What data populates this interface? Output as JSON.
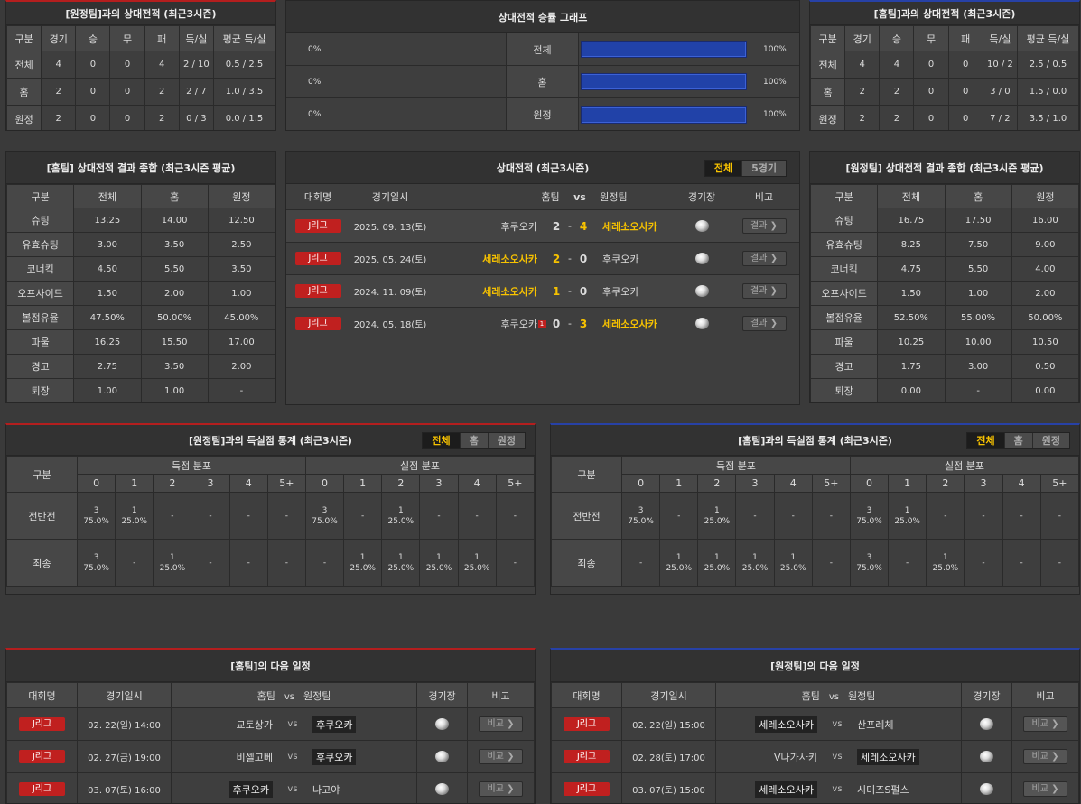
{
  "h2h_away": {
    "title": "[원정팀]과의 상대전적 (최근3시즌)",
    "headers": [
      "구분",
      "경기",
      "승",
      "무",
      "패",
      "득/실",
      "평균 득/실"
    ],
    "rows": [
      [
        "전체",
        "4",
        "0",
        "0",
        "4",
        "2 / 10",
        "0.5 / 2.5"
      ],
      [
        "홈",
        "2",
        "0",
        "0",
        "2",
        "2 / 7",
        "1.0 / 3.5"
      ],
      [
        "원정",
        "2",
        "0",
        "0",
        "2",
        "0 / 3",
        "0.0 / 1.5"
      ]
    ]
  },
  "win_graph": {
    "title": "상대전적 승률 그래프",
    "rows": [
      {
        "label": "전체",
        "left": "0%",
        "right": "100%",
        "fill": 100
      },
      {
        "label": "홈",
        "left": "0%",
        "right": "100%",
        "fill": 100
      },
      {
        "label": "원정",
        "left": "0%",
        "right": "100%",
        "fill": 100
      }
    ]
  },
  "h2h_home": {
    "title": "[홈팀]과의 상대전적 (최근3시즌)",
    "headers": [
      "구분",
      "경기",
      "승",
      "무",
      "패",
      "득/실",
      "평균 득/실"
    ],
    "rows": [
      [
        "전체",
        "4",
        "4",
        "0",
        "0",
        "10 / 2",
        "2.5 / 0.5"
      ],
      [
        "홈",
        "2",
        "2",
        "0",
        "0",
        "3 / 0",
        "1.5 / 0.0"
      ],
      [
        "원정",
        "2",
        "2",
        "0",
        "0",
        "7 / 2",
        "3.5 / 1.0"
      ]
    ]
  },
  "summary_home": {
    "title": "[홈팀] 상대전적 결과 종합 (최근3시즌 평균)",
    "headers": [
      "구분",
      "전체",
      "홈",
      "원정"
    ],
    "rows": [
      [
        "슈팅",
        "13.25",
        "14.00",
        "12.50"
      ],
      [
        "유효슈팅",
        "3.00",
        "3.50",
        "2.50"
      ],
      [
        "코너킥",
        "4.50",
        "5.50",
        "3.50"
      ],
      [
        "오프사이드",
        "1.50",
        "2.00",
        "1.00"
      ],
      [
        "볼점유율",
        "47.50%",
        "50.00%",
        "45.00%"
      ],
      [
        "파울",
        "16.25",
        "15.50",
        "17.00"
      ],
      [
        "경고",
        "2.75",
        "3.50",
        "2.00"
      ],
      [
        "퇴장",
        "1.00",
        "1.00",
        "-"
      ]
    ]
  },
  "matches": {
    "title": "상대전적 (최근3시즌)",
    "tab_all": "전체",
    "tab_5": "5경기",
    "headers": {
      "league": "대회명",
      "date": "경기일시",
      "home": "홈팀",
      "vs": "vs",
      "away": "원정팀",
      "venue": "경기장",
      "note": "비고"
    },
    "rows": [
      {
        "league": "J리그",
        "date": "2025. 09. 13(토)",
        "home": "후쿠오카",
        "hs": "2",
        "dash": "-",
        "as": "4",
        "away": "세레소오사카",
        "btn": "결과 ❯",
        "hl": "away",
        "card": ""
      },
      {
        "league": "J리그",
        "date": "2025. 05. 24(토)",
        "home": "세레소오사카",
        "hs": "2",
        "dash": "-",
        "as": "0",
        "away": "후쿠오카",
        "btn": "결과 ❯",
        "hl": "home",
        "card": ""
      },
      {
        "league": "J리그",
        "date": "2024. 11. 09(토)",
        "home": "세레소오사카",
        "hs": "1",
        "dash": "-",
        "as": "0",
        "away": "후쿠오카",
        "btn": "결과 ❯",
        "hl": "home",
        "card": ""
      },
      {
        "league": "J리그",
        "date": "2024. 05. 18(토)",
        "home": "후쿠오카",
        "hs": "0",
        "dash": "-",
        "as": "3",
        "away": "세레소오사카",
        "btn": "결과 ❯",
        "hl": "away",
        "card": "1"
      }
    ]
  },
  "summary_away": {
    "title": "[원정팀] 상대전적 결과 종합 (최근3시즌 평균)",
    "headers": [
      "구분",
      "전체",
      "홈",
      "원정"
    ],
    "rows": [
      [
        "슈팅",
        "16.75",
        "17.50",
        "16.00"
      ],
      [
        "유효슈팅",
        "8.25",
        "7.50",
        "9.00"
      ],
      [
        "코너킥",
        "4.75",
        "5.50",
        "4.00"
      ],
      [
        "오프사이드",
        "1.50",
        "1.00",
        "2.00"
      ],
      [
        "볼점유율",
        "52.50%",
        "55.00%",
        "50.00%"
      ],
      [
        "파울",
        "10.25",
        "10.00",
        "10.50"
      ],
      [
        "경고",
        "1.75",
        "3.00",
        "0.50"
      ],
      [
        "퇴장",
        "0.00",
        "-",
        "0.00"
      ]
    ]
  },
  "goals_away": {
    "title": "[원정팀]과의 득실점 통계 (최근3시즌)",
    "tabs": [
      "전체",
      "홈",
      "원정"
    ],
    "col_label": "구분",
    "scored": "득점 분포",
    "conceded": "실점 분포",
    "buckets": [
      "0",
      "1",
      "2",
      "3",
      "4",
      "5+"
    ],
    "rows": [
      {
        "label": "전반전",
        "cells": [
          [
            "3",
            "75.0%"
          ],
          [
            "1",
            "25.0%"
          ],
          [
            "-",
            ""
          ],
          [
            "-",
            ""
          ],
          [
            "-",
            ""
          ],
          [
            "-",
            ""
          ],
          [
            "3",
            "75.0%"
          ],
          [
            "-",
            ""
          ],
          [
            "1",
            "25.0%"
          ],
          [
            "-",
            ""
          ],
          [
            "-",
            ""
          ],
          [
            "-",
            ""
          ]
        ]
      },
      {
        "label": "최종",
        "cells": [
          [
            "3",
            "75.0%"
          ],
          [
            "-",
            ""
          ],
          [
            "1",
            "25.0%"
          ],
          [
            "-",
            ""
          ],
          [
            "-",
            ""
          ],
          [
            "-",
            ""
          ],
          [
            "-",
            ""
          ],
          [
            "1",
            "25.0%"
          ],
          [
            "1",
            "25.0%"
          ],
          [
            "1",
            "25.0%"
          ],
          [
            "1",
            "25.0%"
          ],
          [
            "-",
            ""
          ]
        ]
      }
    ]
  },
  "goals_home": {
    "title": "[홈팀]과의 득실점 통계 (최근3시즌)",
    "tabs": [
      "전체",
      "홈",
      "원정"
    ],
    "col_label": "구분",
    "scored": "득점 분포",
    "conceded": "실점 분포",
    "buckets": [
      "0",
      "1",
      "2",
      "3",
      "4",
      "5+"
    ],
    "rows": [
      {
        "label": "전반전",
        "cells": [
          [
            "3",
            "75.0%"
          ],
          [
            "-",
            ""
          ],
          [
            "1",
            "25.0%"
          ],
          [
            "-",
            ""
          ],
          [
            "-",
            ""
          ],
          [
            "-",
            ""
          ],
          [
            "3",
            "75.0%"
          ],
          [
            "1",
            "25.0%"
          ],
          [
            "-",
            ""
          ],
          [
            "-",
            ""
          ],
          [
            "-",
            ""
          ],
          [
            "-",
            ""
          ]
        ]
      },
      {
        "label": "최종",
        "cells": [
          [
            "-",
            ""
          ],
          [
            "1",
            "25.0%"
          ],
          [
            "1",
            "25.0%"
          ],
          [
            "1",
            "25.0%"
          ],
          [
            "1",
            "25.0%"
          ],
          [
            "-",
            ""
          ],
          [
            "3",
            "75.0%"
          ],
          [
            "-",
            ""
          ],
          [
            "1",
            "25.0%"
          ],
          [
            "-",
            ""
          ],
          [
            "-",
            ""
          ],
          [
            "-",
            ""
          ]
        ]
      }
    ]
  },
  "next_home": {
    "title": "[홈팀]의 다음 일정",
    "headers": {
      "league": "대회명",
      "date": "경기일시",
      "home": "홈팀",
      "vs": "vs",
      "away": "원정팀",
      "venue": "경기장",
      "note": "비고"
    },
    "rows": [
      {
        "league": "J리그",
        "date": "02. 22(일) 14:00",
        "home": "교토상가",
        "vs": "vs",
        "away": "후쿠오카",
        "chip": "away",
        "btn": "비교 ❯"
      },
      {
        "league": "J리그",
        "date": "02. 27(금) 19:00",
        "home": "비셀고베",
        "vs": "vs",
        "away": "후쿠오카",
        "chip": "away",
        "btn": "비교 ❯"
      },
      {
        "league": "J리그",
        "date": "03. 07(토) 16:00",
        "home": "후쿠오카",
        "vs": "vs",
        "away": "나고야",
        "chip": "home",
        "btn": "비교 ❯"
      }
    ]
  },
  "next_away": {
    "title": "[원정팀]의 다음 일정",
    "headers": {
      "league": "대회명",
      "date": "경기일시",
      "home": "홈팀",
      "vs": "vs",
      "away": "원정팀",
      "venue": "경기장",
      "note": "비고"
    },
    "rows": [
      {
        "league": "J리그",
        "date": "02. 22(일) 15:00",
        "home": "세레소오사카",
        "vs": "vs",
        "away": "산프레체",
        "chip": "home",
        "btn": "비교 ❯"
      },
      {
        "league": "J리그",
        "date": "02. 28(토) 17:00",
        "home": "V나가사키",
        "vs": "vs",
        "away": "세레소오사카",
        "chip": "away",
        "btn": "비교 ❯"
      },
      {
        "league": "J리그",
        "date": "03. 07(토) 15:00",
        "home": "세레소오사카",
        "vs": "vs",
        "away": "시미즈S펄스",
        "chip": "home",
        "btn": "비교 ❯"
      }
    ]
  }
}
